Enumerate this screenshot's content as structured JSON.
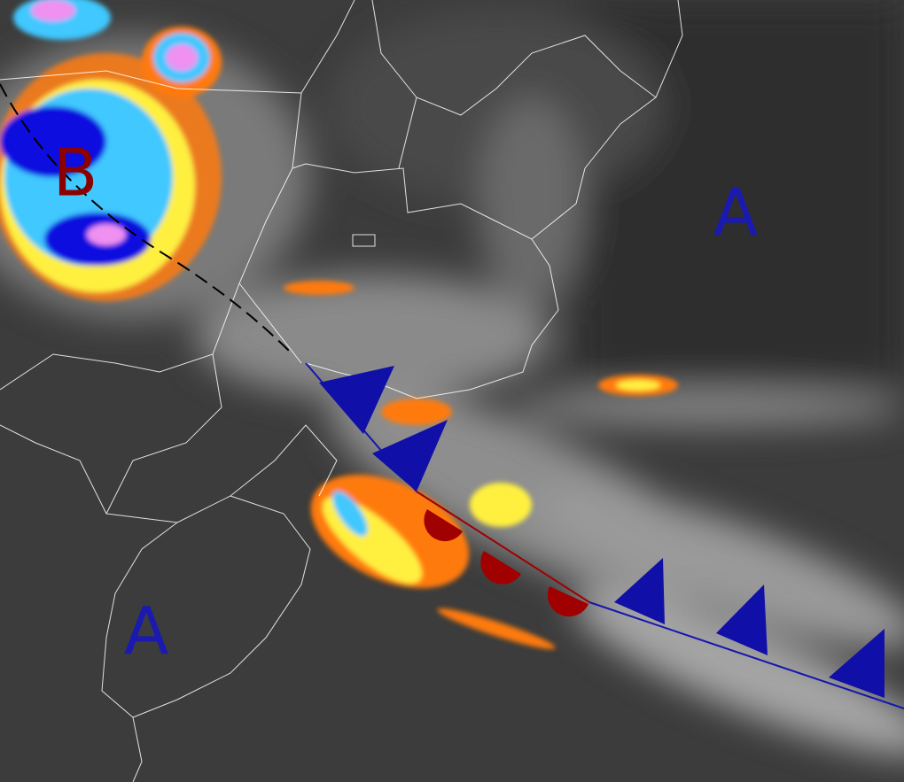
{
  "pressure_labels": [
    {
      "text": "B"
    },
    {
      "text": "A"
    },
    {
      "text": "A"
    }
  ]
}
